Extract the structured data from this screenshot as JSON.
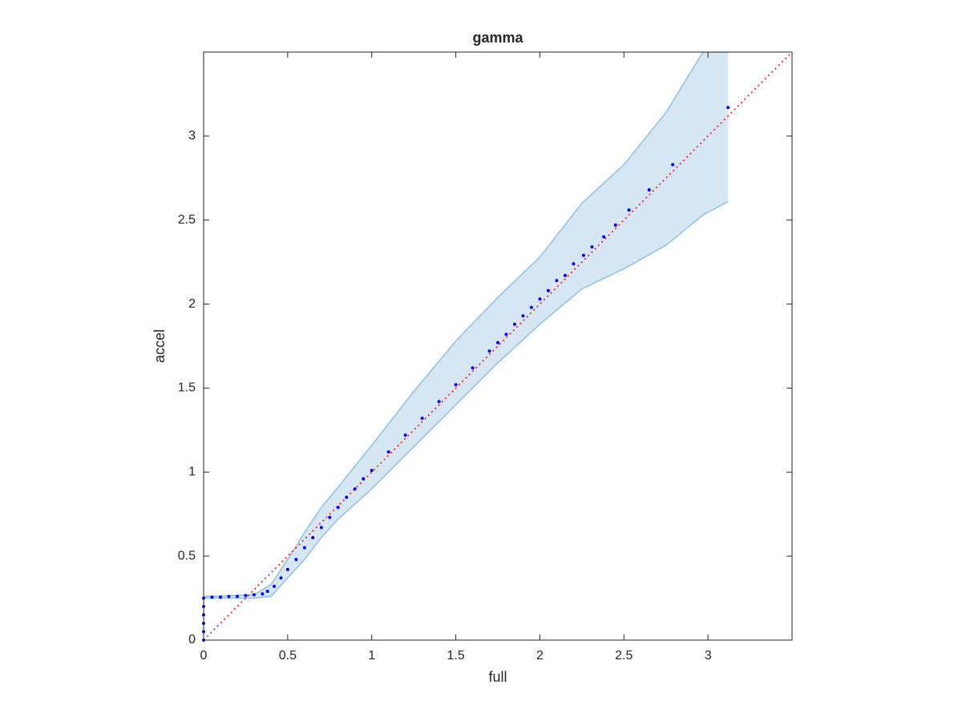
{
  "chart_data": {
    "type": "scatter",
    "title": "gamma",
    "xlabel": "full",
    "ylabel": "accel",
    "xlim": [
      0,
      3.5
    ],
    "ylim": [
      0,
      3.5
    ],
    "xticks": [
      0,
      0.5,
      1,
      1.5,
      2,
      2.5,
      3
    ],
    "yticks": [
      0,
      0.5,
      1,
      1.5,
      2,
      2.5,
      3
    ],
    "color": "#0000ff",
    "x": [
      0,
      0,
      0,
      0,
      0,
      0,
      0.05,
      0.1,
      0.15,
      0.2,
      0.25,
      0.3,
      0.35,
      0.38,
      0.42,
      0.46,
      0.5,
      0.55,
      0.6,
      0.65,
      0.7,
      0.75,
      0.8,
      0.85,
      0.9,
      0.95,
      1.0,
      1.1,
      1.2,
      1.3,
      1.4,
      1.5,
      1.6,
      1.7,
      1.75,
      1.8,
      1.85,
      1.9,
      1.95,
      2.0,
      2.05,
      2.1,
      2.15,
      2.2,
      2.26,
      2.31,
      2.38,
      2.45,
      2.53,
      2.65,
      2.79,
      3.12
    ],
    "y": [
      0,
      0.05,
      0.1,
      0.15,
      0.2,
      0.25,
      0.255,
      0.255,
      0.26,
      0.26,
      0.265,
      0.27,
      0.275,
      0.29,
      0.32,
      0.37,
      0.42,
      0.48,
      0.55,
      0.61,
      0.67,
      0.73,
      0.79,
      0.85,
      0.9,
      0.96,
      1.01,
      1.12,
      1.22,
      1.32,
      1.42,
      1.52,
      1.62,
      1.72,
      1.77,
      1.82,
      1.88,
      1.93,
      1.98,
      2.03,
      2.08,
      2.14,
      2.17,
      2.24,
      2.29,
      2.34,
      2.4,
      2.47,
      2.56,
      2.68,
      2.83,
      3.17
    ],
    "band": {
      "color": "#d6e6f2",
      "edge_color": "#8fc1e0",
      "x": [
        0,
        0.3,
        0.4,
        0.5,
        0.6,
        0.7,
        0.8,
        1.0,
        1.25,
        1.5,
        1.75,
        2.0,
        2.25,
        2.5,
        2.75,
        2.97,
        3.12
      ],
      "upper": [
        0.26,
        0.27,
        0.33,
        0.48,
        0.64,
        0.79,
        0.91,
        1.16,
        1.48,
        1.78,
        2.04,
        2.28,
        2.6,
        2.83,
        3.14,
        3.5,
        3.5
      ],
      "lower": [
        0.25,
        0.25,
        0.26,
        0.37,
        0.48,
        0.61,
        0.72,
        0.9,
        1.15,
        1.4,
        1.65,
        1.88,
        2.09,
        2.21,
        2.35,
        2.53,
        2.61
      ]
    },
    "reference": {
      "color": "#ff0000",
      "x": [
        0,
        3.5
      ],
      "y": [
        0,
        3.5
      ]
    }
  }
}
